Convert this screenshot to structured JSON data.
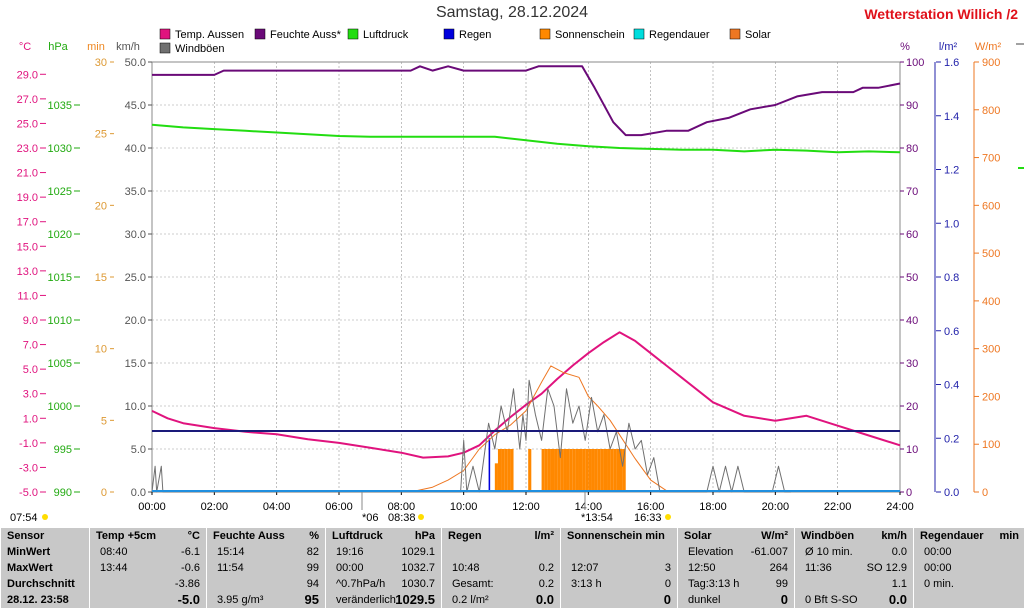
{
  "title": "Samstag, 28.12.2024",
  "station": "Wetterstation Willich",
  "station_suffix": "/2",
  "legend": [
    {
      "label": "Temp. Aussen",
      "color": "#e0137e"
    },
    {
      "label": "Feuchte Auss*",
      "color": "#6a0a78"
    },
    {
      "label": "Luftdruck",
      "color": "#22dd11"
    },
    {
      "label": "Regen",
      "color": "#0000dd"
    },
    {
      "label": "Sonnenschein",
      "color": "#ff8800"
    },
    {
      "label": "Regendauer",
      "color": "#00dddd"
    },
    {
      "label": "Solar",
      "color": "#ee7722"
    },
    {
      "label": "Windböen",
      "color": "#707070"
    }
  ],
  "unit_labels": {
    "temp": "°C",
    "press": "hPa",
    "min": "min",
    "wind": "km/h",
    "hum": "%",
    "rain": "l/m²",
    "solar": "W/m²"
  },
  "chart_data": {
    "type": "line",
    "x_ticks": [
      "00:00",
      "02:00",
      "04:00",
      "06:00",
      "08:00",
      "10:00",
      "12:00",
      "14:00",
      "16:00",
      "18:00",
      "20:00",
      "22:00",
      "24:00"
    ],
    "axes": {
      "temp": {
        "label": "°C",
        "min": -5,
        "max": 30,
        "ticks": [
          "29.0",
          "27.0",
          "25.0",
          "23.0",
          "21.0",
          "19.0",
          "17.0",
          "15.0",
          "13.0",
          "11.0",
          "9.0",
          "7.0",
          "5.0",
          "3.0",
          "1.0",
          "-1.0",
          "-3.0",
          "-5.0"
        ]
      },
      "pressure": {
        "label": "hPa",
        "min": 990,
        "max": 1040,
        "ticks": [
          "1035",
          "1030",
          "1025",
          "1020",
          "1015",
          "1010",
          "1005",
          "1000",
          "995",
          "990"
        ]
      },
      "minutes": {
        "label": "min",
        "min": 0,
        "max": 30,
        "ticks": [
          "30",
          "25",
          "20",
          "15",
          "10",
          "5",
          "0"
        ]
      },
      "wind": {
        "label": "km/h",
        "min": 0,
        "max": 50,
        "ticks": [
          "50.0",
          "45.0",
          "40.0",
          "35.0",
          "30.0",
          "25.0",
          "20.0",
          "15.0",
          "10.0",
          "5.0",
          "0.0"
        ]
      },
      "humidity": {
        "label": "%",
        "min": 0,
        "max": 100,
        "ticks": [
          "100",
          "90",
          "80",
          "70",
          "60",
          "50",
          "40",
          "30",
          "20",
          "10",
          "0"
        ]
      },
      "rain": {
        "label": "l/m²",
        "min": 0,
        "max": 1.6,
        "ticks": [
          "1.6",
          "1.4",
          "1.2",
          "1.0",
          "0.8",
          "0.6",
          "0.4",
          "0.2",
          "0.0"
        ]
      },
      "solar": {
        "label": "W/m²",
        "min": 0,
        "max": 900,
        "ticks": [
          "900",
          "800",
          "700",
          "600",
          "500",
          "400",
          "300",
          "200",
          "100",
          "0"
        ]
      }
    },
    "series": [
      {
        "name": "Feuchte Auss*",
        "axis": "humidity",
        "color": "#6a0a78",
        "x": [
          0,
          2,
          2.3,
          4,
          6,
          8.3,
          8.6,
          9,
          9.5,
          10,
          11,
          12,
          12.4,
          13,
          13.8,
          14.2,
          14.8,
          15.2,
          15.7,
          16.5,
          17.2,
          17.8,
          18.5,
          19.2,
          20,
          20.7,
          21.5,
          22.5,
          22.8,
          23.3,
          24
        ],
        "y": [
          97,
          97,
          98,
          98,
          98,
          98,
          99,
          98,
          99,
          98,
          98,
          98,
          99,
          99,
          99,
          94,
          86,
          83,
          83,
          84,
          84,
          86,
          87,
          89,
          90,
          92,
          93,
          93,
          94,
          94,
          95
        ]
      },
      {
        "name": "Luftdruck",
        "axis": "pressure",
        "color": "#22dd11",
        "x": [
          0,
          1,
          2,
          3,
          4,
          5,
          6,
          7,
          8,
          9,
          10,
          11,
          12,
          13,
          14,
          15,
          16,
          17,
          18,
          19,
          20,
          21,
          22,
          23,
          24
        ],
        "y": [
          1032.7,
          1032.4,
          1032.2,
          1032.0,
          1031.8,
          1031.6,
          1031.4,
          1031.3,
          1031.3,
          1031.3,
          1031.3,
          1031.3,
          1030.9,
          1030.5,
          1030.2,
          1030.0,
          1029.9,
          1029.8,
          1029.8,
          1029.6,
          1029.8,
          1029.7,
          1029.5,
          1029.6,
          1029.5
        ]
      },
      {
        "name": "Temp. Aussen",
        "axis": "temp",
        "color": "#e0137e",
        "x": [
          0,
          0.5,
          1,
          2,
          3,
          4,
          5,
          6,
          7,
          8,
          8.7,
          9.5,
          10,
          10.5,
          11,
          11.5,
          12,
          12.5,
          13,
          13.5,
          14,
          14.5,
          15,
          15.5,
          16,
          16.5,
          17,
          18,
          19,
          20,
          21,
          22,
          23,
          24
        ],
        "y": [
          1.6,
          1.0,
          0.6,
          0.2,
          -0.1,
          -0.3,
          -0.7,
          -1.0,
          -1.4,
          -1.8,
          -2.2,
          -2.1,
          -1.8,
          -1.2,
          0.0,
          1.1,
          2.1,
          3.0,
          4.2,
          5.3,
          6.3,
          7.2,
          8.0,
          7.3,
          6.3,
          5.3,
          4.3,
          2.3,
          1.2,
          0.8,
          1.2,
          0.4,
          -0.4,
          -1.2
        ]
      },
      {
        "name": "Solar",
        "axis": "solar",
        "color": "#ee7722",
        "x": [
          7.8,
          8.5,
          9,
          9.5,
          10,
          10.5,
          11,
          11.5,
          12,
          12.5,
          12.8,
          13.2,
          13.7,
          14,
          14.3,
          14.7,
          15,
          15.5,
          16,
          16.5,
          16.55
        ],
        "y": [
          0,
          3,
          10,
          25,
          45,
          90,
          120,
          140,
          170,
          230,
          264,
          250,
          240,
          200,
          180,
          150,
          120,
          70,
          25,
          3,
          0
        ]
      },
      {
        "name": "Windböen",
        "axis": "wind",
        "color": "#707070",
        "x": [
          0,
          0.1,
          0.15,
          0.3,
          0.35,
          9.9,
          10.0,
          10.1,
          10.3,
          10.5,
          10.8,
          11.0,
          11.2,
          11.4,
          11.6,
          11.8,
          11.9,
          12.0,
          12.1,
          12.3,
          12.5,
          12.7,
          12.9,
          13.1,
          13.3,
          13.5,
          13.7,
          13.9,
          14.1,
          14.3,
          14.5,
          14.7,
          14.9,
          15.1,
          15.3,
          15.5,
          15.7,
          15.9,
          16.1,
          16.3,
          17.8,
          18.0,
          18.2,
          18.4,
          18.6,
          18.8,
          19.0,
          19.9,
          20.1,
          20.3,
          20.5
        ],
        "y": [
          0,
          3,
          0,
          3,
          0,
          0,
          6,
          0,
          3,
          0,
          8,
          5,
          10,
          7,
          12,
          5,
          9,
          6,
          13,
          9,
          6,
          12,
          10,
          4,
          12,
          8,
          10,
          6,
          11,
          7,
          9,
          5,
          7,
          3,
          8,
          5,
          6,
          2,
          4,
          0,
          0,
          3,
          0,
          3,
          0,
          3,
          0,
          0,
          3,
          0,
          0
        ]
      }
    ],
    "reference_lines": [
      {
        "name": "Windböen",
        "axis": "wind",
        "color": "#1a1a7a",
        "value": 7.1
      }
    ],
    "bars": [
      {
        "name": "Regen",
        "axis": "rain",
        "color": "#0000dd",
        "x": [
          10.8
        ],
        "values": [
          0.2
        ]
      },
      {
        "name": "Sonnenschein",
        "axis": "minutes",
        "color": "#ff8800",
        "x": [
          11.0,
          11.1,
          11.2,
          11.3,
          11.4,
          11.5,
          12.07,
          12.5,
          12.6,
          12.7,
          12.8,
          12.9,
          13.0,
          13.1,
          13.2,
          13.3,
          13.4,
          13.5,
          13.6,
          13.7,
          13.8,
          13.9,
          14.0,
          14.1,
          14.2,
          14.3,
          14.4,
          14.5,
          14.6,
          14.7,
          14.8,
          14.9,
          15.0,
          15.1
        ],
        "values": [
          2,
          3,
          3,
          3,
          3,
          3,
          3,
          3,
          3,
          3,
          3,
          3,
          3,
          3,
          3,
          3,
          3,
          3,
          3,
          3,
          3,
          3,
          3,
          3,
          3,
          3,
          3,
          3,
          3,
          3,
          3,
          3,
          3,
          3
        ]
      },
      {
        "name": "Regendauer",
        "axis": "minutes",
        "color": "#00dddd",
        "x": [],
        "values": []
      }
    ],
    "markers": [
      {
        "label": "07:54",
        "x": 7.9
      },
      {
        "label": "*06",
        "x": 7.1
      },
      {
        "label": "08:38",
        "x": 8.63
      },
      {
        "label": "*13:54",
        "x": 13.9
      },
      {
        "label": "16:33",
        "x": 16.55
      }
    ]
  },
  "table": {
    "sensor": {
      "header": "Sensor",
      "rows": [
        "MinWert",
        "MaxWert",
        "Durchschnitt",
        "28.12. 23:58"
      ]
    },
    "temp": {
      "header": "Temp +5cm",
      "unit": "°C",
      "rows": [
        [
          "08:40",
          "-6.1"
        ],
        [
          "13:44",
          "-0.6"
        ],
        [
          "",
          "-3.86"
        ],
        [
          "",
          "-5.0"
        ]
      ]
    },
    "feuchte": {
      "header": "Feuchte Auss",
      "unit": "%",
      "rows": [
        [
          "15:14",
          "82"
        ],
        [
          "11:54",
          "99"
        ],
        [
          "",
          "94"
        ],
        [
          "3.95 g/m³",
          "95"
        ]
      ]
    },
    "luftdruck": {
      "header": "Luftdruck",
      "unit": "hPa",
      "rows": [
        [
          "19:16",
          "1029.1"
        ],
        [
          "00:00",
          "1032.7"
        ],
        [
          "^0.7hPa/h",
          "1030.7"
        ],
        [
          "veränderlich",
          "1029.5"
        ]
      ]
    },
    "regen": {
      "header": "Regen",
      "unit": "l/m²",
      "rows": [
        [
          "",
          ""
        ],
        [
          "10:48",
          "0.2"
        ],
        [
          "Gesamt:",
          "0.2"
        ],
        [
          "0.2 l/m²",
          "0.0"
        ]
      ]
    },
    "sonne": {
      "header": "Sonnenschein min",
      "rows": [
        [
          "",
          ""
        ],
        [
          "12:07",
          "3"
        ],
        [
          "3:13 h",
          "0"
        ],
        [
          "",
          "0"
        ]
      ]
    },
    "solar": {
      "header": "Solar",
      "unit": "W/m²",
      "rows": [
        [
          "Elevation",
          "-61.007"
        ],
        [
          "12:50",
          "264"
        ],
        [
          "Tag:3:13 h",
          "99"
        ],
        [
          "dunkel",
          "0"
        ]
      ]
    },
    "wind": {
      "header": "Windböen",
      "unit": "km/h",
      "rows": [
        [
          "Ø 10 min.",
          "0.0"
        ],
        [
          "11:36",
          "SO 12.9"
        ],
        [
          "",
          "1.1"
        ],
        [
          "0 Bft S-SO",
          "0.0"
        ]
      ]
    },
    "regendauer": {
      "header": "Regendauer",
      "unit": "min",
      "rows": [
        [
          "00:00",
          ""
        ],
        [
          "00:00",
          ""
        ],
        [
          "0 min.",
          ""
        ],
        [
          "",
          ""
        ]
      ]
    }
  }
}
